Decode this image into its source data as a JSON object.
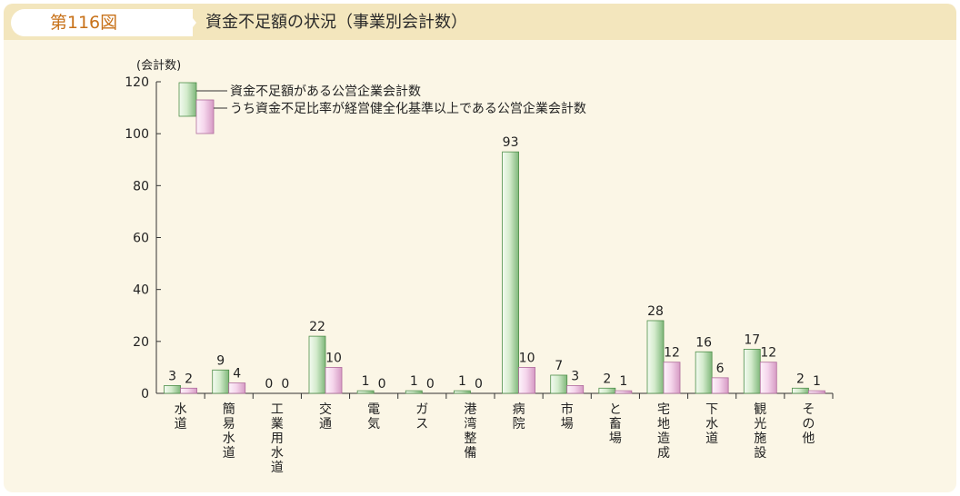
{
  "figure": {
    "number": "第116図",
    "title": "資金不足額の状況（事業別会計数）"
  },
  "chart_data": {
    "type": "bar",
    "ylabel": "(会計数)",
    "ylim": [
      0,
      120
    ],
    "yticks": [
      "0",
      "20",
      "40",
      "60",
      "80",
      "100",
      "120"
    ],
    "categories": [
      "水道",
      "簡易水道",
      "工業用水道",
      "交通",
      "電気",
      "ガス",
      "港湾整備",
      "病院",
      "市場",
      "と畜場",
      "宅地造成",
      "下水道",
      "観光施設",
      "その他"
    ],
    "series": [
      {
        "name": "資金不足額がある公営企業会計数",
        "values": [
          3,
          9,
          0,
          22,
          1,
          1,
          1,
          93,
          7,
          2,
          28,
          16,
          17,
          2
        ],
        "color": "#cfe8c8"
      },
      {
        "name": "うち資金不足比率が経営健全化基準以上である公営企業会計数",
        "values": [
          2,
          4,
          0,
          10,
          0,
          0,
          0,
          10,
          3,
          1,
          12,
          6,
          12,
          1
        ],
        "color": "#f3d3ea"
      }
    ]
  }
}
